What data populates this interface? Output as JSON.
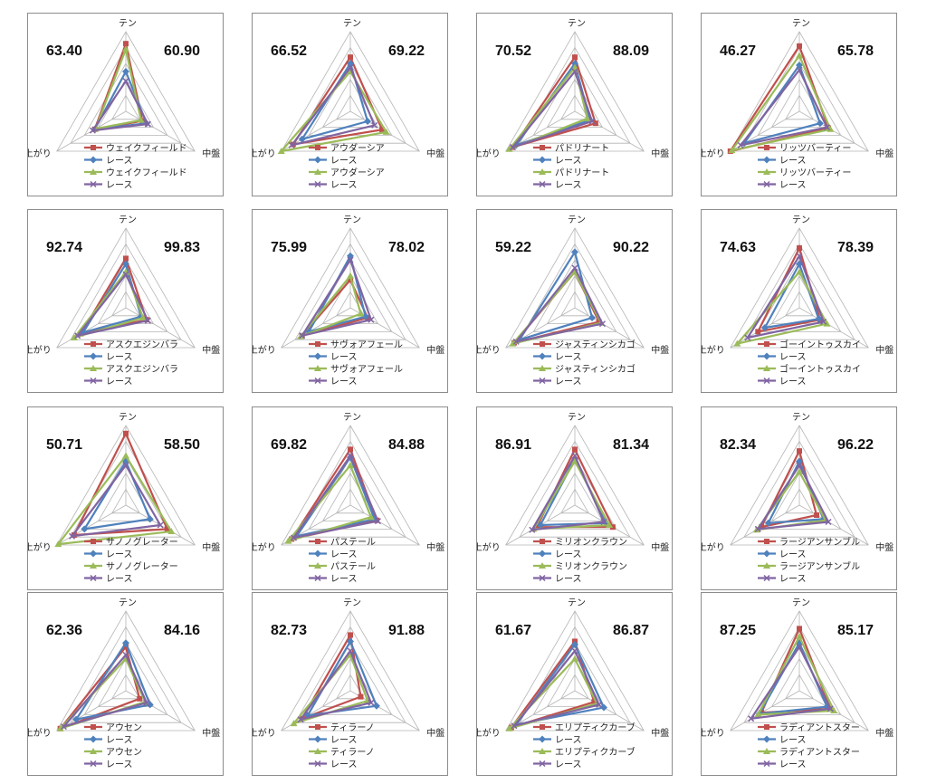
{
  "colors": {
    "red": "#c0504d",
    "blue": "#4f81bd",
    "green": "#9bbb59",
    "purple": "#8064a2"
  },
  "axes": [
    "テン",
    "中盤",
    "上がり"
  ],
  "chart_data": [
    {
      "type": "radar",
      "left_value": "63.40",
      "right_value": "60.90",
      "axes": [
        "テン",
        "中盤",
        "上がり"
      ],
      "series": [
        {
          "name": "ウェイクフィールド",
          "values": [
            0.85,
            0.24,
            0.45
          ]
        },
        {
          "name": "レース",
          "values": [
            0.5,
            0.3,
            0.45
          ]
        },
        {
          "name": "ウェイクフィールド",
          "values": [
            0.78,
            0.22,
            0.44
          ]
        },
        {
          "name": "レース",
          "values": [
            0.38,
            0.32,
            0.48
          ]
        }
      ]
    },
    {
      "type": "radar",
      "left_value": "66.52",
      "right_value": "69.22",
      "axes": [
        "テン",
        "中盤",
        "上がり"
      ],
      "series": [
        {
          "name": "アウダーシア",
          "values": [
            0.68,
            0.46,
            0.83
          ]
        },
        {
          "name": "レース",
          "values": [
            0.6,
            0.25,
            0.7
          ]
        },
        {
          "name": "アウダーシア",
          "values": [
            0.5,
            0.52,
            1.0
          ]
        },
        {
          "name": "レース",
          "values": [
            0.55,
            0.35,
            0.85
          ]
        }
      ]
    },
    {
      "type": "radar",
      "left_value": "70.52",
      "right_value": "88.09",
      "axes": [
        "テン",
        "中盤",
        "上がり"
      ],
      "series": [
        {
          "name": "パドリナート",
          "values": [
            0.68,
            0.3,
            0.9
          ]
        },
        {
          "name": "レース",
          "values": [
            0.6,
            0.22,
            0.85
          ]
        },
        {
          "name": "パドリナート",
          "values": [
            0.55,
            0.18,
            0.95
          ]
        },
        {
          "name": "レース",
          "values": [
            0.5,
            0.25,
            0.9
          ]
        }
      ]
    },
    {
      "type": "radar",
      "left_value": "46.27",
      "right_value": "65.78",
      "axes": [
        "テン",
        "中盤",
        "上がり"
      ],
      "series": [
        {
          "name": "リッツバーティー",
          "values": [
            0.82,
            0.42,
            1.0
          ]
        },
        {
          "name": "レース",
          "values": [
            0.58,
            0.3,
            0.8
          ]
        },
        {
          "name": "リッツバーティー",
          "values": [
            0.7,
            0.45,
            0.98
          ]
        },
        {
          "name": "レース",
          "values": [
            0.52,
            0.4,
            0.85
          ]
        }
      ]
    },
    {
      "type": "radar",
      "left_value": "92.74",
      "right_value": "99.83",
      "axes": [
        "テン",
        "中盤",
        "上がり"
      ],
      "series": [
        {
          "name": "アスクエジンバラ",
          "values": [
            0.62,
            0.3,
            0.65
          ]
        },
        {
          "name": "レース",
          "values": [
            0.55,
            0.22,
            0.62
          ]
        },
        {
          "name": "アスクエジンバラ",
          "values": [
            0.45,
            0.25,
            0.75
          ]
        },
        {
          "name": "レース",
          "values": [
            0.42,
            0.32,
            0.7
          ]
        }
      ]
    },
    {
      "type": "radar",
      "left_value": "75.99",
      "right_value": "78.02",
      "axes": [
        "テン",
        "中盤",
        "上がり"
      ],
      "series": [
        {
          "name": "サヴォアフェール",
          "values": [
            0.35,
            0.25,
            0.7
          ]
        },
        {
          "name": "レース",
          "values": [
            0.65,
            0.22,
            0.6
          ]
        },
        {
          "name": "サヴォアフェール",
          "values": [
            0.4,
            0.15,
            0.72
          ]
        },
        {
          "name": "レース",
          "values": [
            0.6,
            0.3,
            0.7
          ]
        }
      ]
    },
    {
      "type": "radar",
      "left_value": "59.22",
      "right_value": "90.22",
      "axes": [
        "テン",
        "中盤",
        "上がり"
      ],
      "series": [
        {
          "name": "ジャスティンシカゴ",
          "values": [
            0.45,
            0.35,
            0.88
          ]
        },
        {
          "name": "レース",
          "values": [
            0.7,
            0.25,
            0.8
          ]
        },
        {
          "name": "ジャスティンシカゴ",
          "values": [
            0.45,
            0.38,
            0.9
          ]
        },
        {
          "name": "レース",
          "values": [
            0.5,
            0.4,
            0.85
          ]
        }
      ]
    },
    {
      "type": "radar",
      "left_value": "74.63",
      "right_value": "78.39",
      "axes": [
        "テン",
        "中盤",
        "上がり"
      ],
      "series": [
        {
          "name": "ゴーイントゥスカイ",
          "values": [
            0.75,
            0.3,
            0.6
          ]
        },
        {
          "name": "レース",
          "values": [
            0.55,
            0.28,
            0.5
          ]
        },
        {
          "name": "ゴーイントゥスカイ",
          "values": [
            0.45,
            0.4,
            0.9
          ]
        },
        {
          "name": "レース",
          "values": [
            0.65,
            0.35,
            0.75
          ]
        }
      ]
    },
    {
      "type": "radar",
      "left_value": "50.71",
      "right_value": "58.50",
      "axes": [
        "テン",
        "中盤",
        "上がり"
      ],
      "series": [
        {
          "name": "サノノグレーター",
          "values": [
            0.9,
            0.6,
            0.75
          ]
        },
        {
          "name": "レース",
          "values": [
            0.55,
            0.35,
            0.6
          ]
        },
        {
          "name": "サノノグレーター",
          "values": [
            0.62,
            0.66,
            0.98
          ]
        },
        {
          "name": "レース",
          "values": [
            0.5,
            0.5,
            0.78
          ]
        }
      ]
    },
    {
      "type": "radar",
      "left_value": "69.82",
      "right_value": "84.88",
      "axes": [
        "テン",
        "中盤",
        "上がり"
      ],
      "series": [
        {
          "name": "パステール",
          "values": [
            0.7,
            0.38,
            0.85
          ]
        },
        {
          "name": "レース",
          "values": [
            0.6,
            0.35,
            0.78
          ]
        },
        {
          "name": "パステール",
          "values": [
            0.5,
            0.3,
            0.9
          ]
        },
        {
          "name": "レース",
          "values": [
            0.62,
            0.4,
            0.82
          ]
        }
      ]
    },
    {
      "type": "radar",
      "left_value": "86.91",
      "right_value": "81.34",
      "axes": [
        "テン",
        "中盤",
        "上がり"
      ],
      "series": [
        {
          "name": "ミリオンクラウン",
          "values": [
            0.7,
            0.55,
            0.55
          ]
        },
        {
          "name": "レース",
          "values": [
            0.58,
            0.45,
            0.5
          ]
        },
        {
          "name": "ミリオンクラウン",
          "values": [
            0.55,
            0.5,
            0.6
          ]
        },
        {
          "name": "レース",
          "values": [
            0.62,
            0.42,
            0.62
          ]
        }
      ]
    },
    {
      "type": "radar",
      "left_value": "82.34",
      "right_value": "96.22",
      "axes": [
        "テン",
        "中盤",
        "上がり"
      ],
      "series": [
        {
          "name": "ラージアンサンブル",
          "values": [
            0.68,
            0.25,
            0.55
          ]
        },
        {
          "name": "レース",
          "values": [
            0.55,
            0.35,
            0.45
          ]
        },
        {
          "name": "ラージアンサンブル",
          "values": [
            0.42,
            0.38,
            0.62
          ]
        },
        {
          "name": "レース",
          "values": [
            0.5,
            0.42,
            0.6
          ]
        }
      ]
    },
    {
      "type": "radar",
      "left_value": "62.36",
      "right_value": "84.16",
      "axes": [
        "テン",
        "中盤",
        "上がり"
      ],
      "series": [
        {
          "name": "アウセン",
          "values": [
            0.55,
            0.2,
            0.95
          ]
        },
        {
          "name": "レース",
          "values": [
            0.6,
            0.35,
            0.72
          ]
        },
        {
          "name": "アウセン",
          "values": [
            0.4,
            0.28,
            0.95
          ]
        },
        {
          "name": "レース",
          "values": [
            0.45,
            0.3,
            0.9
          ]
        }
      ]
    },
    {
      "type": "radar",
      "left_value": "82.73",
      "right_value": "91.88",
      "axes": [
        "テン",
        "中盤",
        "上がり"
      ],
      "series": [
        {
          "name": "ティラーノ",
          "values": [
            0.7,
            0.15,
            0.7
          ]
        },
        {
          "name": "レース",
          "values": [
            0.62,
            0.38,
            0.62
          ]
        },
        {
          "name": "ティラーノ",
          "values": [
            0.45,
            0.25,
            0.82
          ]
        },
        {
          "name": "レース",
          "values": [
            0.5,
            0.3,
            0.72
          ]
        }
      ]
    },
    {
      "type": "radar",
      "left_value": "61.67",
      "right_value": "86.87",
      "axes": [
        "テン",
        "中盤",
        "上がり"
      ],
      "series": [
        {
          "name": "エリプティクカーブ",
          "values": [
            0.62,
            0.28,
            0.92
          ]
        },
        {
          "name": "レース",
          "values": [
            0.58,
            0.42,
            0.85
          ]
        },
        {
          "name": "エリプティクカーブ",
          "values": [
            0.4,
            0.32,
            0.95
          ]
        },
        {
          "name": "レース",
          "values": [
            0.5,
            0.35,
            0.88
          ]
        }
      ]
    },
    {
      "type": "radar",
      "left_value": "87.25",
      "right_value": "85.17",
      "axes": [
        "テン",
        "中盤",
        "上がり"
      ],
      "series": [
        {
          "name": "ラディアントスター",
          "values": [
            0.78,
            0.45,
            0.55
          ]
        },
        {
          "name": "レース",
          "values": [
            0.6,
            0.4,
            0.58
          ]
        },
        {
          "name": "ラディアントスター",
          "values": [
            0.68,
            0.5,
            0.6
          ]
        },
        {
          "name": "レース",
          "values": [
            0.55,
            0.45,
            0.7
          ]
        }
      ]
    }
  ]
}
